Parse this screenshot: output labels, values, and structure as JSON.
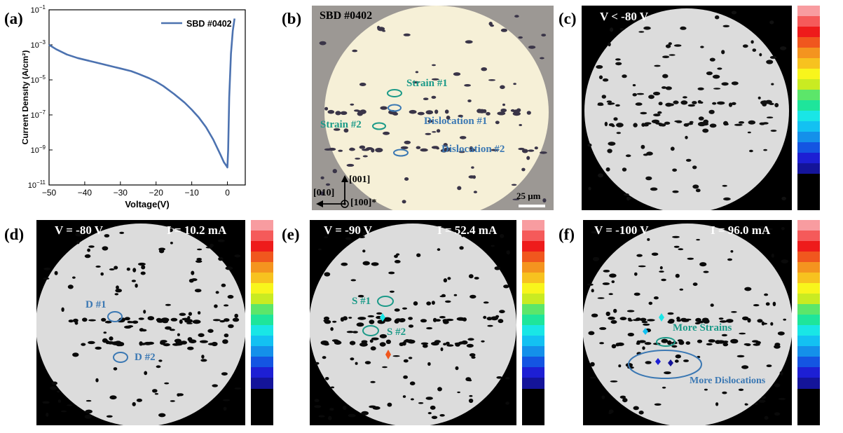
{
  "figure": {
    "panel_labels": [
      "(a)",
      "(b)",
      "(c)",
      "(d)",
      "(e)",
      "(f)"
    ],
    "colorbar_colors": [
      "#f89ca0",
      "#f55a5a",
      "#ee1b1b",
      "#f0571e",
      "#f4941f",
      "#f7c21f",
      "#f8f51c",
      "#c9eb22",
      "#5ce66a",
      "#1ee59b",
      "#19e6e6",
      "#13c1f2",
      "#1490ea",
      "#1455e2",
      "#1d1fd4",
      "#14149a",
      "#000000"
    ],
    "panel_b": {
      "title": "SBD #0402",
      "strain1": "Strain #1",
      "strain2": "Strain #2",
      "dislocation1": "Dislocation #1",
      "dislocation2": "Dislocation #2",
      "axis_001": "[001]",
      "axis_010": "[010]",
      "axis_100": "[100]*",
      "scale_bar": "25 μm",
      "marker_color_teal": "#1b9a88",
      "marker_color_blue": "#3b78b3"
    },
    "panel_c": {
      "voltage": "V < -80 V"
    },
    "panel_d": {
      "voltage": "V = -80 V",
      "current": "I = 10.2 mA",
      "d1": "D #1",
      "d2": "D #2"
    },
    "panel_e": {
      "voltage": "V = -90 V",
      "current": "I = 52.4 mA",
      "s1": "S #1",
      "s2": "S #2"
    },
    "panel_f": {
      "voltage": "V = -100 V",
      "current": "I = 96.0 mA",
      "more_strains": "More Strains",
      "more_dislocations": "More Dislocations"
    }
  },
  "chart_data": {
    "type": "line",
    "title": "",
    "xlabel": "Voltage(V)",
    "ylabel": "Current Density (A/cm²)",
    "xlim": [
      -50,
      5
    ],
    "ylim_log10": [
      -11,
      -1
    ],
    "x_ticks": [
      "−50",
      "−40",
      "−30",
      "−20",
      "−10",
      "0"
    ],
    "x_tick_values": [
      -50,
      -40,
      -30,
      -20,
      -10,
      0
    ],
    "y_tick_exponents": [
      -11,
      -9,
      -7,
      -5,
      -3,
      -1
    ],
    "y_tick_base": "10",
    "y_tick_sups": [
      "−11",
      "−9",
      "−7",
      "−5",
      "−3",
      "−1"
    ],
    "legend": "SBD #0402",
    "line_color": "#4c72b0",
    "series": [
      {
        "name": "SBD #0402",
        "x": [
          -50,
          -48,
          -45,
          -42,
          -40,
          -37,
          -35,
          -32,
          -30,
          -27,
          -25,
          -22,
          -20,
          -18,
          -15,
          -12,
          -10,
          -8,
          -6,
          -4,
          -2,
          -1,
          -0.3,
          0,
          0.2,
          0.5,
          1,
          1.5,
          2
        ],
        "log10_y": [
          -3.0,
          -3.25,
          -3.55,
          -3.75,
          -3.85,
          -4.0,
          -4.1,
          -4.25,
          -4.35,
          -4.5,
          -4.65,
          -4.9,
          -5.1,
          -5.35,
          -5.8,
          -6.3,
          -6.7,
          -7.15,
          -7.7,
          -8.4,
          -9.25,
          -9.7,
          -9.9,
          -10.0,
          -9.0,
          -6.0,
          -3.5,
          -2.2,
          -1.5
        ]
      }
    ]
  }
}
